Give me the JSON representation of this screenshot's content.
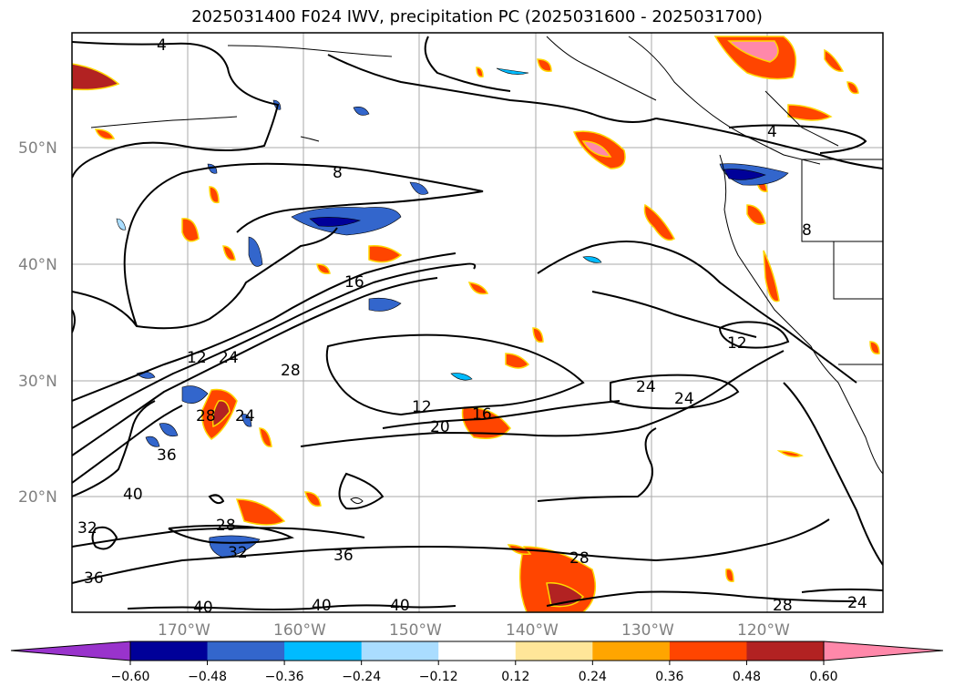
{
  "title": "2025031400 F024 IWV, precipitation PC (2025031600 - 2025031700)",
  "lat_labels": [
    "50°N",
    "40°N",
    "30°N",
    "20°N"
  ],
  "lon_labels": [
    "170°W",
    "160°W",
    "150°W",
    "140°W",
    "130°W",
    "120°W"
  ],
  "colorbar": {
    "colors": [
      "#9933cc",
      "#000099",
      "#3366cc",
      "#00bbff",
      "#aaddff",
      "#ffffff",
      "#ffe699",
      "#ffa500",
      "#ff4500",
      "#b22222",
      "#ff88aa"
    ],
    "ticks": [
      "−0.60",
      "−0.48",
      "−0.36",
      "−0.24",
      "−0.12",
      "0.12",
      "0.24",
      "0.36",
      "0.48",
      "0.60"
    ]
  },
  "contour_labels": [
    "4",
    "4",
    "8",
    "8",
    "12",
    "12",
    "12",
    "16",
    "16",
    "20",
    "24",
    "24",
    "24",
    "24",
    "28",
    "28",
    "28",
    "28",
    "28",
    "32",
    "32",
    "36",
    "36",
    "36",
    "40",
    "40",
    "40",
    "40",
    "24"
  ]
}
